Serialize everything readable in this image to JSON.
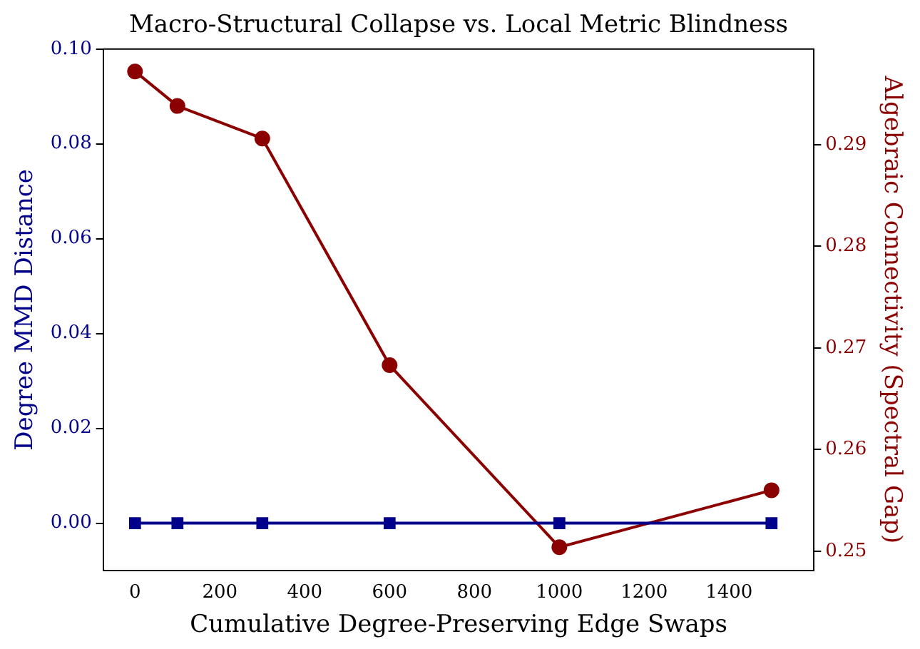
{
  "chart_data": {
    "type": "line",
    "title": "Macro-Structural Collapse vs. Local Metric Blindness",
    "xlabel": "Cumulative Degree-Preserving Edge Swaps",
    "ylabel": "Degree MMD Distance",
    "y2label": "Algebraic Connectivity (Spectral Gap)",
    "x": [
      0,
      100,
      300,
      600,
      1000,
      1500
    ],
    "series": [
      {
        "color": "#00008b",
        "values": [
          0,
          0,
          0,
          0,
          0,
          0
        ],
        "marker": "square"
      },
      {
        "color": "#8b0000",
        "values": [
          0.2972,
          0.2938,
          0.2906,
          0.2683,
          0.2504,
          0.256
        ],
        "axis": "y2",
        "marker": "circle"
      }
    ],
    "xlim": [
      -75,
      1600
    ],
    "xticks": [
      0,
      200,
      400,
      600,
      800,
      1000,
      1200,
      1400
    ],
    "ylim": [
      -0.01,
      0.1
    ],
    "yticks": [
      {
        "value": 0,
        "label": "0.00"
      },
      {
        "value": 0.02,
        "label": "0.02"
      },
      {
        "value": 0.04,
        "label": "0.04"
      },
      {
        "value": 0.06,
        "label": "0.06"
      },
      {
        "value": 0.08,
        "label": "0.08"
      },
      {
        "value": 0.1,
        "label": "0.10"
      }
    ],
    "y2lim": [
      0.2481,
      0.2994
    ],
    "y2ticks": [
      {
        "value": 0.25,
        "label": "0.25"
      },
      {
        "value": 0.26,
        "label": "0.26"
      },
      {
        "value": 0.27,
        "label": "0.27"
      },
      {
        "value": 0.28,
        "label": "0.28"
      },
      {
        "value": 0.29,
        "label": "0.29"
      }
    ],
    "grid": false,
    "legend": false,
    "line_style": "solid"
  }
}
